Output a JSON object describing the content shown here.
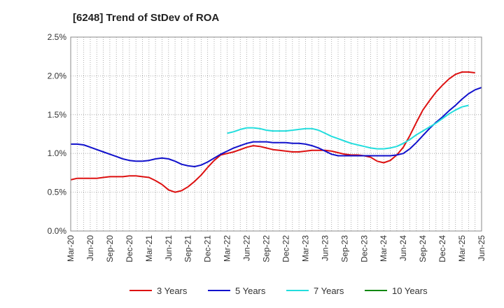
{
  "chart_data": {
    "type": "line",
    "title": "[6248]  Trend of StDev of ROA",
    "xlabel": "",
    "ylabel": "",
    "x_tick_labels": [
      "Mar-20",
      "Jun-20",
      "Sep-20",
      "Dec-20",
      "Mar-21",
      "Jun-21",
      "Sep-21",
      "Dec-21",
      "Mar-22",
      "Jun-22",
      "Sep-22",
      "Dec-22",
      "Mar-23",
      "Jun-23",
      "Sep-23",
      "Dec-23",
      "Mar-24",
      "Jun-24",
      "Sep-24",
      "Dec-24",
      "Mar-25",
      "Jun-25"
    ],
    "y_tick_labels": [
      "0.0%",
      "0.5%",
      "1.0%",
      "1.5%",
      "2.0%",
      "2.5%"
    ],
    "ylim": [
      0,
      2.5
    ],
    "y_unit": "%",
    "grid": true,
    "legend_position": "bottom",
    "series": [
      {
        "name": "3 Years",
        "color": "#dd1111",
        "values": [
          0.66,
          0.68,
          0.68,
          0.68,
          0.68,
          0.69,
          0.7,
          0.7,
          0.7,
          0.71,
          0.71,
          0.7,
          0.69,
          0.65,
          0.6,
          0.53,
          0.5,
          0.52,
          0.57,
          0.64,
          0.72,
          0.82,
          0.91,
          0.98,
          1.0,
          1.02,
          1.05,
          1.08,
          1.1,
          1.09,
          1.07,
          1.05,
          1.04,
          1.03,
          1.02,
          1.02,
          1.03,
          1.04,
          1.04,
          1.04,
          1.03,
          1.01,
          0.99,
          0.98,
          0.98,
          0.97,
          0.95,
          0.9,
          0.88,
          0.91,
          0.98,
          1.08,
          1.23,
          1.4,
          1.56,
          1.68,
          1.79,
          1.88,
          1.96,
          2.02,
          2.05,
          2.05,
          2.04
        ]
      },
      {
        "name": "5 Years",
        "color": "#1111cc",
        "values": [
          1.12,
          1.12,
          1.11,
          1.08,
          1.05,
          1.02,
          0.99,
          0.96,
          0.93,
          0.91,
          0.9,
          0.9,
          0.91,
          0.93,
          0.94,
          0.93,
          0.9,
          0.86,
          0.84,
          0.83,
          0.85,
          0.89,
          0.94,
          0.99,
          1.03,
          1.07,
          1.1,
          1.13,
          1.15,
          1.15,
          1.15,
          1.14,
          1.14,
          1.14,
          1.13,
          1.13,
          1.12,
          1.1,
          1.07,
          1.03,
          0.99,
          0.97,
          0.97,
          0.97,
          0.97,
          0.97,
          0.97,
          0.97,
          0.97,
          0.97,
          0.98,
          1.0,
          1.06,
          1.14,
          1.23,
          1.32,
          1.4,
          1.47,
          1.55,
          1.62,
          1.7,
          1.77,
          1.82,
          1.85
        ]
      },
      {
        "name": "7 Years",
        "color": "#22dddd",
        "values": [
          null,
          null,
          null,
          null,
          null,
          null,
          null,
          null,
          null,
          null,
          null,
          null,
          null,
          null,
          null,
          null,
          null,
          null,
          null,
          null,
          null,
          null,
          null,
          null,
          1.26,
          1.28,
          1.31,
          1.33,
          1.33,
          1.32,
          1.3,
          1.29,
          1.29,
          1.29,
          1.3,
          1.31,
          1.32,
          1.32,
          1.3,
          1.26,
          1.22,
          1.19,
          1.16,
          1.13,
          1.11,
          1.09,
          1.07,
          1.06,
          1.06,
          1.07,
          1.09,
          1.13,
          1.18,
          1.24,
          1.29,
          1.34,
          1.39,
          1.45,
          1.51,
          1.56,
          1.6,
          1.62
        ]
      },
      {
        "name": "10 Years",
        "color": "#118811",
        "values": []
      }
    ]
  }
}
